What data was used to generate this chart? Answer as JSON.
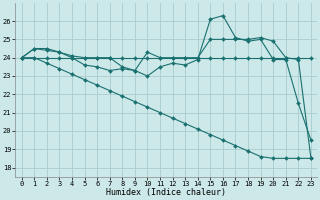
{
  "xlabel": "Humidex (Indice chaleur)",
  "background_color": "#cce8e8",
  "grid_color": "#aacccc",
  "line_color": "#1a7070",
  "x_values": [
    0,
    1,
    2,
    3,
    4,
    5,
    6,
    7,
    8,
    9,
    10,
    11,
    12,
    13,
    14,
    15,
    16,
    17,
    18,
    19,
    20,
    21,
    22,
    23
  ],
  "series": {
    "line1": [
      24.0,
      24.5,
      24.5,
      24.3,
      24.0,
      23.6,
      23.5,
      23.3,
      23.4,
      23.3,
      23.0,
      23.5,
      23.7,
      23.6,
      23.9,
      26.1,
      26.3,
      25.1,
      24.9,
      25.0,
      23.9,
      23.9,
      21.5,
      19.5
    ],
    "line2": [
      24.0,
      24.5,
      24.4,
      24.3,
      24.1,
      24.0,
      24.0,
      24.0,
      23.5,
      23.3,
      24.3,
      24.0,
      24.0,
      24.0,
      24.0,
      25.0,
      25.0,
      25.0,
      25.0,
      25.1,
      24.9,
      24.0,
      23.9,
      18.5
    ],
    "line3": [
      24.0,
      24.0,
      24.0,
      24.0,
      24.0,
      24.0,
      24.0,
      24.0,
      24.0,
      24.0,
      24.0,
      24.0,
      24.0,
      24.0,
      24.0,
      24.0,
      24.0,
      24.0,
      24.0,
      24.0,
      24.0,
      24.0,
      24.0,
      24.0
    ],
    "line4": [
      24.0,
      24.0,
      23.7,
      23.4,
      23.1,
      22.8,
      22.5,
      22.2,
      21.9,
      21.6,
      21.3,
      21.0,
      20.7,
      20.4,
      20.1,
      19.8,
      19.5,
      19.2,
      18.9,
      18.6,
      18.5,
      18.5,
      18.5,
      18.5
    ]
  },
  "ylim": [
    17.5,
    27
  ],
  "xlim": [
    -0.5,
    23.5
  ],
  "yticks": [
    18,
    19,
    20,
    21,
    22,
    23,
    24,
    25,
    26
  ],
  "xticks": [
    0,
    1,
    2,
    3,
    4,
    5,
    6,
    7,
    8,
    9,
    10,
    11,
    12,
    13,
    14,
    15,
    16,
    17,
    18,
    19,
    20,
    21,
    22,
    23
  ],
  "marker": "D",
  "markersize": 2.0,
  "linewidth": 0.8
}
